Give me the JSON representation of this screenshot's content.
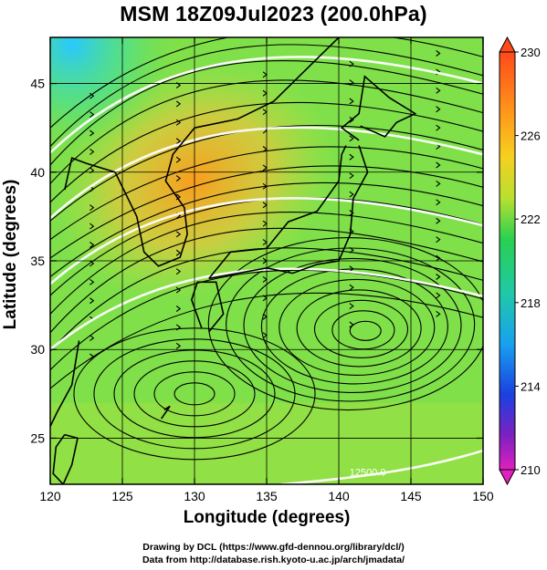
{
  "title": "MSM 18Z09Jul2023 (200.0hPa)",
  "xlabel": "Longitude (degrees)",
  "ylabel": "Latitude  (degrees)",
  "credits": {
    "line1": "Drawing by DCL (https://www.gfd-dennou.org/library/dcl/)",
    "line2": "Data from http://database.rish.kyoto-u.ac.jp/arch/jmadata/"
  },
  "chart_data": {
    "type": "heatmap",
    "variable_level": "200.0hPa",
    "xlim": [
      120,
      150
    ],
    "ylim": [
      22.4,
      47.6
    ],
    "x_ticks": [
      "120",
      "125",
      "130",
      "135",
      "140",
      "145",
      "150"
    ],
    "y_ticks": [
      "25",
      "30",
      "35",
      "40",
      "45"
    ],
    "grid": true,
    "colorbar": {
      "range": [
        210,
        230
      ],
      "ticks": [
        "230",
        "226",
        "222",
        "218",
        "214",
        "210"
      ],
      "placement": "right"
    },
    "contour_labels": [
      "12500.0"
    ],
    "warm_region": {
      "lon": [
        124,
        136
      ],
      "lat": [
        36,
        43
      ],
      "value": 226
    },
    "cold_region": {
      "lon": [
        120,
        127
      ],
      "lat": [
        43,
        47.6
      ],
      "value": 218
    },
    "anticyclone_center": {
      "lon": 142,
      "lat": 31
    },
    "colors": {
      "base": "#7fe04a",
      "warm": "#ff9a1a",
      "cold": "#28c8ff",
      "streamline": "#000000",
      "contour": "#ffffff"
    }
  }
}
